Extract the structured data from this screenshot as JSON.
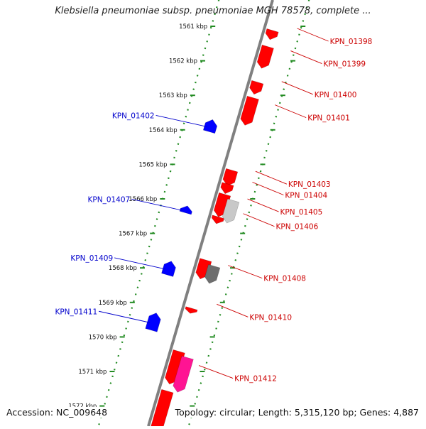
{
  "title": "Klebsiella pneumoniae subsp. pneumoniae MGH 78578, complete ...",
  "footer": {
    "accession": "Accession: NC_009648",
    "summary": "Topology: circular; Length: 5,315,120 bp; Genes: 4,887"
  },
  "colors": {
    "forward_gene": "#ff0000",
    "reverse_gene": "#0000ff",
    "grey_light": "#c8c8c8",
    "grey_dark": "#6e6e6e",
    "pink": "#ff1493",
    "backbone": "#808080",
    "scale_ticks": "#228b22",
    "forward_label": "#cc0000",
    "reverse_label": "#0000cc"
  },
  "scale": {
    "unit": "kbp",
    "ticks": [
      {
        "kbp": 1561,
        "label": "1561 kbp"
      },
      {
        "kbp": 1562,
        "label": "1562 kbp"
      },
      {
        "kbp": 1563,
        "label": "1563 kbp"
      },
      {
        "kbp": 1564,
        "label": "1564 kbp"
      },
      {
        "kbp": 1565,
        "label": "1565 kbp"
      },
      {
        "kbp": 1566,
        "label": "1566 kbp"
      },
      {
        "kbp": 1567,
        "label": "1567 kbp"
      },
      {
        "kbp": 1568,
        "label": "1568 kbp"
      },
      {
        "kbp": 1569,
        "label": "1569 kbp"
      },
      {
        "kbp": 1570,
        "label": "1570 kbp"
      },
      {
        "kbp": 1571,
        "label": "1571 kbp"
      },
      {
        "kbp": 1572,
        "label": "1572 kbp"
      }
    ]
  },
  "features": [
    {
      "name": "KPN_01398",
      "strand": 1,
      "start": 1561.05,
      "end": 1561.32,
      "type": "forward"
    },
    {
      "name": "KPN_01399",
      "strand": 1,
      "start": 1561.52,
      "end": 1562.15,
      "type": "forward"
    },
    {
      "name": "KPN_01400",
      "strand": 1,
      "start": 1562.55,
      "end": 1562.9,
      "type": "forward"
    },
    {
      "name": "KPN_01401",
      "strand": 1,
      "start": 1563.0,
      "end": 1563.8,
      "type": "forward"
    },
    {
      "name": "KPN_01402",
      "strand": -1,
      "start": 1563.9,
      "end": 1564.25,
      "type": "reverse"
    },
    {
      "name": "KPN_01403",
      "strand": 1,
      "start": 1565.1,
      "end": 1565.55,
      "type": "forward"
    },
    {
      "name": "KPN_01404",
      "strand": 1,
      "start": 1565.5,
      "end": 1565.78,
      "type": "forward"
    },
    {
      "name": "KPN_01405",
      "strand": 1,
      "start": 1565.8,
      "end": 1566.45,
      "type": "forward"
    },
    {
      "name": "KPN_01406",
      "strand": 1,
      "start": 1566.45,
      "end": 1566.65,
      "type": "forward"
    },
    {
      "name": "",
      "strand": 1,
      "start": 1565.9,
      "end": 1566.55,
      "type": "grey_light",
      "track": 2
    },
    {
      "name": "KPN_01407",
      "strand": -1,
      "start": 1566.4,
      "end": 1566.6,
      "type": "reverse"
    },
    {
      "name": "",
      "strand": 1,
      "start": 1567.7,
      "end": 1568.25,
      "type": "forward"
    },
    {
      "name": "KPN_01408",
      "strand": 1,
      "start": 1567.8,
      "end": 1568.3,
      "type": "grey_dark",
      "track": 2
    },
    {
      "name": "KPN_01409",
      "strand": -1,
      "start": 1568.0,
      "end": 1568.4,
      "type": "reverse"
    },
    {
      "name": "KPN_01410",
      "strand": 1,
      "start": 1569.1,
      "end": 1569.25,
      "type": "forward"
    },
    {
      "name": "KPN_01411",
      "strand": -1,
      "start": 1569.5,
      "end": 1570.0,
      "type": "reverse"
    },
    {
      "name": "",
      "strand": 1,
      "start": 1570.35,
      "end": 1571.3,
      "type": "forward"
    },
    {
      "name": "KPN_01412",
      "strand": 1,
      "start": 1570.45,
      "end": 1571.45,
      "type": "pink",
      "track": 2
    },
    {
      "name": "",
      "strand": 1,
      "start": 1571.5,
      "end": 1572.7,
      "type": "forward"
    }
  ]
}
